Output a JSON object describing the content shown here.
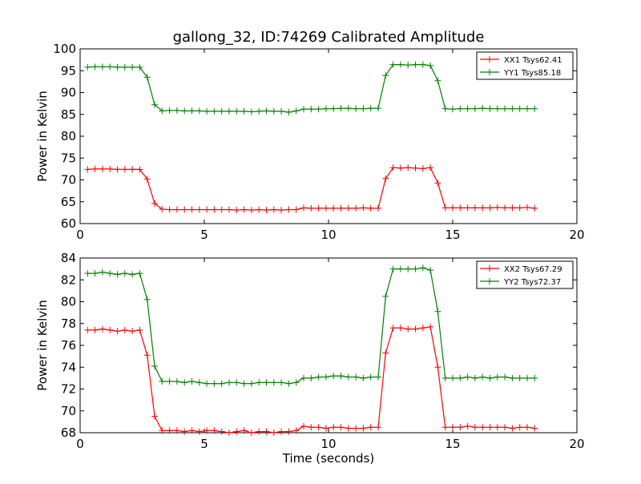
{
  "title": "gallong_32, ID:74269 Calibrated Amplitude",
  "chart_data": [
    {
      "type": "line",
      "title": "gallong_32, ID:74269 Calibrated Amplitude",
      "xlabel": "",
      "ylabel": "Power in Kelvin",
      "xlim": [
        0,
        20
      ],
      "ylim": [
        60,
        100
      ],
      "xticks": [
        "0",
        "5",
        "10",
        "15",
        "20"
      ],
      "yticks": [
        "60",
        "65",
        "70",
        "75",
        "80",
        "85",
        "90",
        "95",
        "100"
      ],
      "grid": false,
      "legend": "top-right",
      "x": [
        0.3,
        0.6,
        0.9,
        1.2,
        1.5,
        1.8,
        2.1,
        2.4,
        2.7,
        3.0,
        3.3,
        3.6,
        3.9,
        4.2,
        4.5,
        4.8,
        5.1,
        5.4,
        5.7,
        6.0,
        6.3,
        6.6,
        6.9,
        7.2,
        7.5,
        7.8,
        8.1,
        8.4,
        8.7,
        9.0,
        9.3,
        9.6,
        9.9,
        10.2,
        10.5,
        10.8,
        11.1,
        11.4,
        11.7,
        12.0,
        12.3,
        12.6,
        12.9,
        13.2,
        13.5,
        13.8,
        14.1,
        14.4,
        14.7,
        15.0,
        15.3,
        15.6,
        15.9,
        16.2,
        16.5,
        16.8,
        17.1,
        17.4,
        17.7,
        18.0,
        18.3
      ],
      "series": [
        {
          "name": "XX1 Tsys62.41",
          "color": "#ff0000",
          "values": [
            72.4,
            72.5,
            72.5,
            72.5,
            72.4,
            72.4,
            72.4,
            72.4,
            70.2,
            64.6,
            63.3,
            63.2,
            63.2,
            63.2,
            63.2,
            63.2,
            63.2,
            63.2,
            63.2,
            63.2,
            63.1,
            63.2,
            63.1,
            63.2,
            63.1,
            63.2,
            63.1,
            63.2,
            63.2,
            63.6,
            63.5,
            63.5,
            63.5,
            63.5,
            63.5,
            63.5,
            63.5,
            63.6,
            63.5,
            63.5,
            70.3,
            72.8,
            72.7,
            72.8,
            72.7,
            72.6,
            72.8,
            69.3,
            63.6,
            63.6,
            63.6,
            63.6,
            63.6,
            63.6,
            63.6,
            63.7,
            63.6,
            63.6,
            63.6,
            63.7,
            63.5
          ]
        },
        {
          "name": "YY1 Tsys85.18",
          "color": "#008000",
          "values": [
            95.8,
            95.9,
            95.9,
            95.9,
            95.8,
            95.8,
            95.8,
            95.8,
            93.5,
            87.2,
            85.8,
            85.9,
            85.9,
            85.8,
            85.8,
            85.8,
            85.7,
            85.7,
            85.7,
            85.7,
            85.7,
            85.7,
            85.6,
            85.7,
            85.8,
            85.7,
            85.7,
            85.5,
            85.8,
            86.2,
            86.2,
            86.2,
            86.3,
            86.3,
            86.4,
            86.4,
            86.3,
            86.3,
            86.4,
            86.4,
            93.9,
            96.4,
            96.4,
            96.3,
            96.4,
            96.4,
            96.2,
            92.7,
            86.3,
            86.2,
            86.3,
            86.3,
            86.3,
            86.4,
            86.3,
            86.3,
            86.3,
            86.3,
            86.3,
            86.3,
            86.3
          ]
        }
      ]
    },
    {
      "type": "line",
      "title": "",
      "xlabel": "Time (seconds)",
      "ylabel": "Power in Kelvin",
      "xlim": [
        0,
        20
      ],
      "ylim": [
        68,
        84
      ],
      "xticks": [
        "0",
        "5",
        "10",
        "15",
        "20"
      ],
      "yticks": [
        "68",
        "70",
        "72",
        "74",
        "76",
        "78",
        "80",
        "82",
        "84"
      ],
      "grid": false,
      "legend": "top-right",
      "x": [
        0.3,
        0.6,
        0.9,
        1.2,
        1.5,
        1.8,
        2.1,
        2.4,
        2.7,
        3.0,
        3.3,
        3.6,
        3.9,
        4.2,
        4.5,
        4.8,
        5.1,
        5.4,
        5.7,
        6.0,
        6.3,
        6.6,
        6.9,
        7.2,
        7.5,
        7.8,
        8.1,
        8.4,
        8.7,
        9.0,
        9.3,
        9.6,
        9.9,
        10.2,
        10.5,
        10.8,
        11.1,
        11.4,
        11.7,
        12.0,
        12.3,
        12.6,
        12.9,
        13.2,
        13.5,
        13.8,
        14.1,
        14.4,
        14.7,
        15.0,
        15.3,
        15.6,
        15.9,
        16.2,
        16.5,
        16.8,
        17.1,
        17.4,
        17.7,
        18.0,
        18.3
      ],
      "series": [
        {
          "name": "XX2 Tsys67.29",
          "color": "#ff0000",
          "values": [
            77.4,
            77.4,
            77.5,
            77.4,
            77.3,
            77.4,
            77.3,
            77.4,
            75.1,
            69.5,
            68.2,
            68.2,
            68.2,
            68.1,
            68.2,
            68.1,
            68.2,
            68.2,
            68.1,
            68.0,
            68.1,
            68.2,
            68.0,
            68.1,
            68.1,
            68.0,
            68.1,
            68.1,
            68.2,
            68.6,
            68.5,
            68.5,
            68.4,
            68.5,
            68.5,
            68.4,
            68.4,
            68.4,
            68.5,
            68.5,
            75.3,
            77.6,
            77.6,
            77.5,
            77.5,
            77.6,
            77.7,
            74.0,
            68.5,
            68.5,
            68.5,
            68.6,
            68.5,
            68.5,
            68.5,
            68.5,
            68.5,
            68.4,
            68.5,
            68.5,
            68.4
          ]
        },
        {
          "name": "YY2 Tsys72.37",
          "color": "#008000",
          "values": [
            82.6,
            82.6,
            82.7,
            82.6,
            82.5,
            82.6,
            82.5,
            82.6,
            80.2,
            74.1,
            72.7,
            72.7,
            72.7,
            72.6,
            72.7,
            72.6,
            72.5,
            72.5,
            72.5,
            72.6,
            72.6,
            72.5,
            72.5,
            72.6,
            72.6,
            72.6,
            72.6,
            72.5,
            72.6,
            73.0,
            73.0,
            73.1,
            73.1,
            73.2,
            73.2,
            73.1,
            73.1,
            73.0,
            73.1,
            73.1,
            80.5,
            83.0,
            83.0,
            83.0,
            83.0,
            83.1,
            82.9,
            79.1,
            73.0,
            73.0,
            73.0,
            73.1,
            73.0,
            73.1,
            73.0,
            73.1,
            73.1,
            73.0,
            73.0,
            73.0,
            73.0
          ]
        }
      ]
    }
  ]
}
